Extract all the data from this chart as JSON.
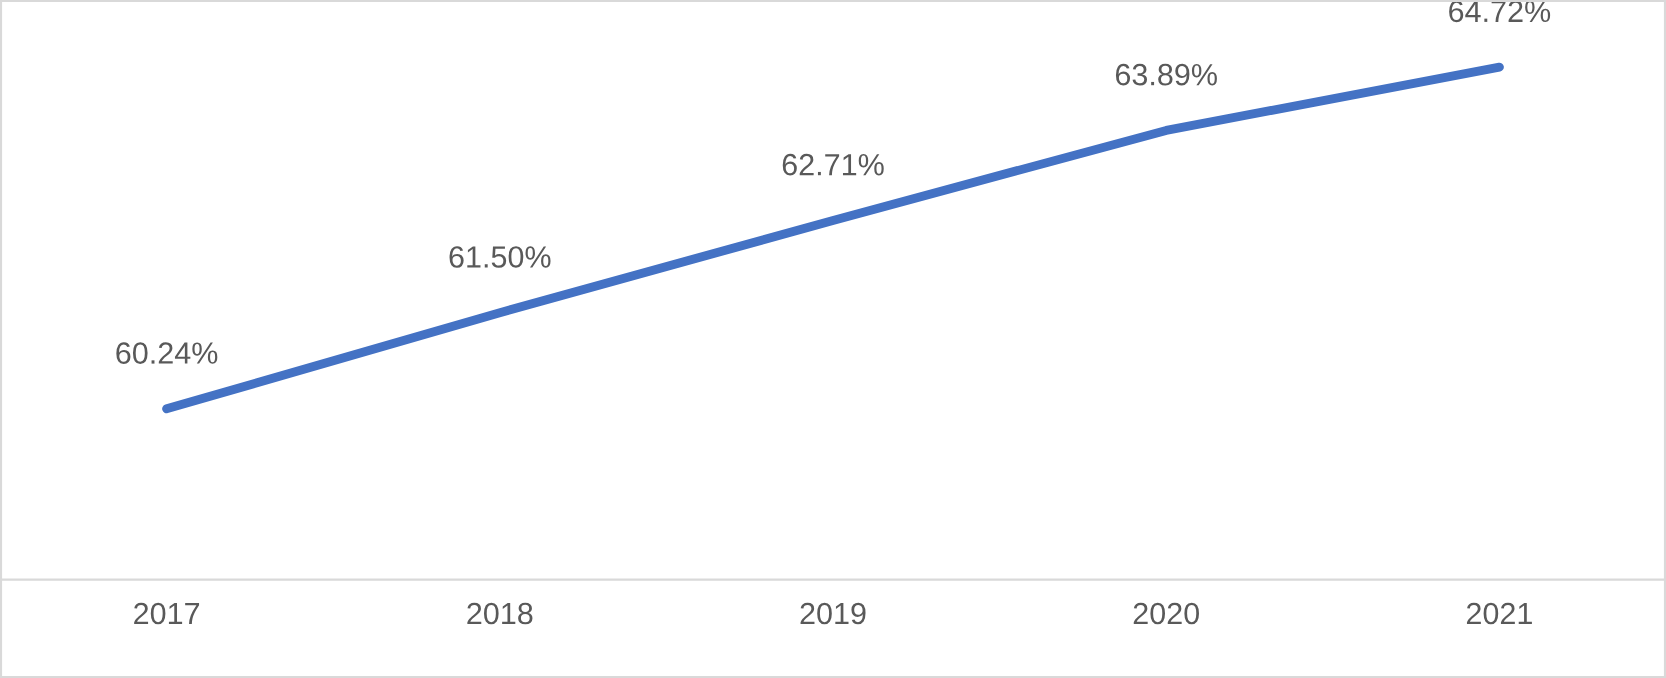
{
  "chart_data": {
    "type": "line",
    "categories": [
      "2017",
      "2018",
      "2019",
      "2020",
      "2021"
    ],
    "series": [
      {
        "color": "#4472c4",
        "values": [
          60.24,
          61.5,
          62.71,
          63.89,
          64.72
        ],
        "value_labels": [
          "60.24%",
          "61.50%",
          "62.71%",
          "63.89%",
          "64.72%"
        ]
      }
    ],
    "ylim": [
      58,
      65.6
    ],
    "tick_labels": "x",
    "grid": false,
    "legend": false,
    "marker": "none",
    "line_style": "solid"
  }
}
